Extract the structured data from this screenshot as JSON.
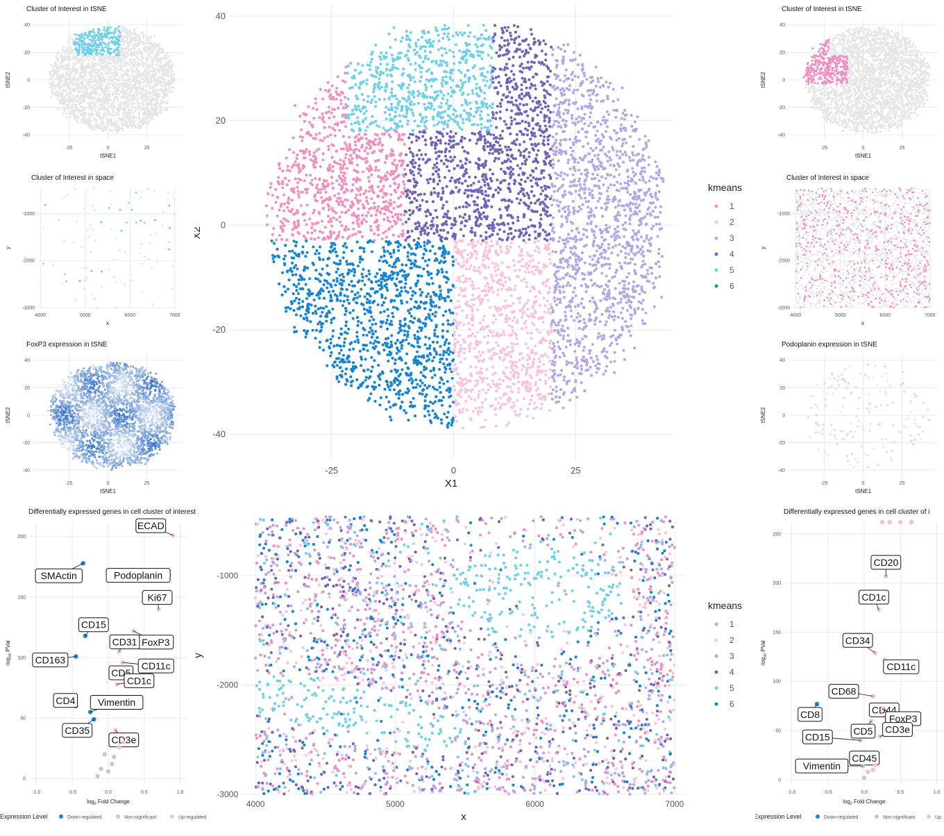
{
  "kmeans_colors": {
    "1": "#f08fc0",
    "2": "#f8c3dc",
    "3": "#b3a7e6",
    "4": "#7262b9",
    "5": "#6fd1e9",
    "6": "#1584d1"
  },
  "highlight_colors": {
    "left": "#6fd1e9",
    "right": "#f08fc0",
    "background": "#e6e6e6"
  },
  "volcano_colors": {
    "Down-regulated": "#1584d1",
    "Non-significant": "#c8c8c8",
    "Up-regulated": "#f7bfd5"
  },
  "chart_data": [
    {
      "id": "left-cluster-tsne",
      "type": "scatter",
      "title": "Cluster of Interest in tSNE",
      "xlabel": "tSNE1",
      "ylabel": "tSNE2",
      "xlim": [
        -48,
        48
      ],
      "ylim": [
        -44,
        44
      ],
      "xticks": [
        -25,
        0,
        25
      ],
      "yticks": [
        40,
        20,
        0,
        -20,
        -40
      ],
      "highlight_cluster": 5
    },
    {
      "id": "left-cluster-space",
      "type": "scatter",
      "title": "Cluster of Interest in space",
      "xlabel": "x",
      "ylabel": "y",
      "xlim": [
        3950,
        7050
      ],
      "ylim": [
        -3000,
        -460
      ],
      "xticks": [
        4000,
        5000,
        6000,
        7000
      ],
      "yticks": [
        -1000,
        -2000,
        -3000
      ],
      "highlight_cluster": 5
    },
    {
      "id": "left-foxp3-tsne",
      "type": "scatter",
      "title": "FoxP3 expression in tSNE",
      "xlabel": "tSNE1",
      "ylabel": "tSNE2",
      "xlim": [
        -48,
        48
      ],
      "ylim": [
        -44,
        44
      ],
      "xticks": [
        -25,
        0,
        25
      ],
      "yticks": [
        40,
        20,
        0,
        -20,
        -40
      ],
      "gradient": [
        "#eef2f9",
        "#1a5fc4"
      ]
    },
    {
      "id": "left-volcano",
      "type": "scatter",
      "title": "Differentially expressed genes in cell cluster of interest",
      "xlabel": "Fold Change",
      "xlabel_prefix": "log",
      "xlabel_sub": "2",
      "ylabel": "PVal",
      "ylabel_prefix": "-log",
      "ylabel_sub": "10",
      "xlim": [
        -1.1,
        1.1
      ],
      "ylim": [
        -5,
        212
      ],
      "xticks": [
        "-1.0",
        "-0.5",
        "0.0",
        "0.5",
        "1.0"
      ],
      "yticks": [
        0,
        50,
        100,
        150,
        200
      ],
      "points": [
        {
          "gene": "ECAD",
          "x": 0.9,
          "y": 201,
          "status": "Up-regulated"
        },
        {
          "gene": "SMActin",
          "x": -0.35,
          "y": 178,
          "status": "Down-regulated"
        },
        {
          "gene": "Podoplanin",
          "x": 0.85,
          "y": 168,
          "status": "Up-regulated"
        },
        {
          "gene": "Ki67",
          "x": 0.7,
          "y": 140,
          "status": "Up-regulated"
        },
        {
          "gene": "CD15",
          "x": -0.32,
          "y": 118,
          "status": "Down-regulated"
        },
        {
          "gene": "FoxP3",
          "x": 0.35,
          "y": 122,
          "status": "Up-regulated"
        },
        {
          "gene": "CD31",
          "x": 0.15,
          "y": 105,
          "status": "Up-regulated"
        },
        {
          "gene": "CD163",
          "x": -0.45,
          "y": 101,
          "status": "Down-regulated"
        },
        {
          "gene": "CD11c",
          "x": 0.2,
          "y": 96,
          "status": "Up-regulated"
        },
        {
          "gene": "CD5",
          "x": 0.1,
          "y": 92,
          "status": "Up-regulated"
        },
        {
          "gene": "CD1c",
          "x": 0.12,
          "y": 78,
          "status": "Up-regulated"
        },
        {
          "gene": "CD4",
          "x": -0.45,
          "y": 60,
          "status": "Down-regulated"
        },
        {
          "gene": "Vimentin",
          "x": -0.25,
          "y": 55,
          "status": "Down-regulated"
        },
        {
          "gene": "CD35",
          "x": -0.2,
          "y": 49,
          "status": "Down-regulated"
        },
        {
          "gene": "CD3e",
          "x": 0.1,
          "y": 40,
          "status": "Up-regulated"
        },
        {
          "gene": "",
          "x": -0.05,
          "y": 20,
          "status": "Non-significant"
        },
        {
          "gene": "",
          "x": 0.05,
          "y": 12,
          "status": "Non-significant"
        },
        {
          "gene": "",
          "x": -0.1,
          "y": 8,
          "status": "Non-significant"
        },
        {
          "gene": "",
          "x": 0.0,
          "y": 6,
          "status": "Non-significant"
        },
        {
          "gene": "",
          "x": -0.15,
          "y": 2,
          "status": "Non-significant"
        },
        {
          "gene": "",
          "x": 0.08,
          "y": 18,
          "status": "Non-significant"
        },
        {
          "gene": "",
          "x": 0.15,
          "y": 26,
          "status": "Up-regulated"
        },
        {
          "gene": "",
          "x": 0.22,
          "y": 30,
          "status": "Up-regulated"
        }
      ]
    },
    {
      "id": "center-tsne",
      "type": "scatter",
      "xlabel": "X1",
      "ylabel": "X2",
      "xlim": [
        -46,
        45
      ],
      "ylim": [
        -45,
        42
      ],
      "xticks": [
        -25,
        0,
        25
      ],
      "yticks": [
        40,
        20,
        0,
        -20,
        -40
      ],
      "legend_title": "kmeans",
      "legend_position": "right",
      "series": [
        {
          "name": "1",
          "cx": -20,
          "cy": 5,
          "extent": "left-upper"
        },
        {
          "name": "2",
          "cx": 8,
          "cy": -15,
          "extent": "right-lower"
        },
        {
          "name": "3",
          "cx": 30,
          "cy": 5,
          "extent": "far-right"
        },
        {
          "name": "4",
          "cx": 5,
          "cy": 6,
          "extent": "center"
        },
        {
          "name": "5",
          "cx": -10,
          "cy": 27,
          "extent": "top"
        },
        {
          "name": "6",
          "cx": -12,
          "cy": -18,
          "extent": "left-lower"
        }
      ]
    },
    {
      "id": "center-space",
      "type": "scatter",
      "xlabel": "x",
      "ylabel": "y",
      "xlim": [
        3900,
        7080
      ],
      "ylim": [
        -3000,
        -460
      ],
      "xticks": [
        4000,
        5000,
        6000,
        7000
      ],
      "yticks": [
        -1000,
        -2000,
        -3000
      ],
      "legend_title": "kmeans",
      "legend_position": "right",
      "series": [
        {
          "name": "1"
        },
        {
          "name": "2"
        },
        {
          "name": "3"
        },
        {
          "name": "4"
        },
        {
          "name": "5"
        },
        {
          "name": "6"
        }
      ]
    },
    {
      "id": "right-cluster-tsne",
      "type": "scatter",
      "title": "Cluster of Interest in tSNE",
      "xlabel": "tSNE1",
      "ylabel": "tSNE2",
      "xlim": [
        -48,
        48
      ],
      "ylim": [
        -44,
        44
      ],
      "xticks": [
        -25,
        0,
        25
      ],
      "yticks": [
        40,
        20,
        0,
        -20,
        -40
      ],
      "highlight_cluster": 1
    },
    {
      "id": "right-cluster-space",
      "type": "scatter",
      "title": "Cluster of Interest in space",
      "xlabel": "x",
      "ylabel": "y",
      "xlim": [
        3950,
        7050
      ],
      "ylim": [
        -3000,
        -460
      ],
      "xticks": [
        4000,
        5000,
        6000,
        7000
      ],
      "yticks": [
        -1000,
        -2000,
        -3000
      ],
      "highlight_cluster": 1
    },
    {
      "id": "right-podoplanin-tsne",
      "type": "scatter",
      "title": "Podoplanin expression in tSNE",
      "xlabel": "tSNE1",
      "ylabel": "tSNE2",
      "xlim": [
        -48,
        48
      ],
      "ylim": [
        -44,
        44
      ],
      "xticks": [
        -25,
        0,
        25
      ],
      "yticks": [
        40,
        20,
        0,
        -20,
        -40
      ],
      "gradient": [
        "#efefef",
        "#f3c9dd"
      ]
    },
    {
      "id": "right-volcano",
      "type": "scatter",
      "title": "Differentially expressed genes in cell cluster of i",
      "xlabel": "Fold Change",
      "xlabel_prefix": "log",
      "xlabel_sub": "2",
      "ylabel": "PVal",
      "ylabel_prefix": "-log",
      "ylabel_sub": "10",
      "xlim": [
        -1.1,
        1.1
      ],
      "ylim": [
        -5,
        262
      ],
      "xticks": [
        "-1.0",
        "-0.5",
        "0.0",
        "0.5",
        "1.0"
      ],
      "yticks": [
        0,
        50,
        100,
        150,
        200,
        250
      ],
      "points": [
        {
          "gene": "CD20",
          "x": 0.3,
          "y": 207,
          "status": "Up-regulated"
        },
        {
          "gene": "CD1c",
          "x": 0.2,
          "y": 173,
          "status": "Up-regulated"
        },
        {
          "gene": "CD34",
          "x": 0.15,
          "y": 129,
          "status": "Up-regulated"
        },
        {
          "gene": "CD11c",
          "x": 0.28,
          "y": 122,
          "status": "Up-regulated"
        },
        {
          "gene": "CD68",
          "x": 0.12,
          "y": 85,
          "status": "Up-regulated"
        },
        {
          "gene": "CD44",
          "x": 0.18,
          "y": 76,
          "status": "Up-regulated"
        },
        {
          "gene": "FoxP3",
          "x": 0.25,
          "y": 72,
          "status": "Up-regulated"
        },
        {
          "gene": "CD8",
          "x": -0.65,
          "y": 77,
          "status": "Down-regulated"
        },
        {
          "gene": "CD5",
          "x": 0.1,
          "y": 60,
          "status": "Up-regulated"
        },
        {
          "gene": "CD3e",
          "x": 0.22,
          "y": 44,
          "status": "Up-regulated"
        },
        {
          "gene": "CD15",
          "x": -0.05,
          "y": 40,
          "status": "Non-significant"
        },
        {
          "gene": "CD45",
          "x": 0.05,
          "y": 22,
          "status": "Non-significant"
        },
        {
          "gene": "Vimentin",
          "x": -0.02,
          "y": 14,
          "status": "Non-significant"
        },
        {
          "gene": "",
          "x": 0.25,
          "y": 262,
          "status": "Up-regulated"
        },
        {
          "gene": "",
          "x": 0.35,
          "y": 262,
          "status": "Up-regulated"
        },
        {
          "gene": "",
          "x": 0.5,
          "y": 262,
          "status": "Up-regulated"
        },
        {
          "gene": "",
          "x": 0.65,
          "y": 262,
          "status": "Up-regulated"
        },
        {
          "gene": "",
          "x": 0.0,
          "y": 2,
          "status": "Non-significant"
        },
        {
          "gene": "",
          "x": 0.05,
          "y": 8,
          "status": "Up-regulated"
        },
        {
          "gene": "",
          "x": 0.12,
          "y": 10,
          "status": "Up-regulated"
        },
        {
          "gene": "",
          "x": 0.15,
          "y": 15,
          "status": "Up-regulated"
        }
      ]
    }
  ],
  "legend": {
    "title": "Expression Level",
    "items": [
      "Down-regulated",
      "Non-significant",
      "Up-regulated"
    ],
    "right_items": [
      "Down-regulated",
      "Non-significant",
      "Up"
    ]
  }
}
